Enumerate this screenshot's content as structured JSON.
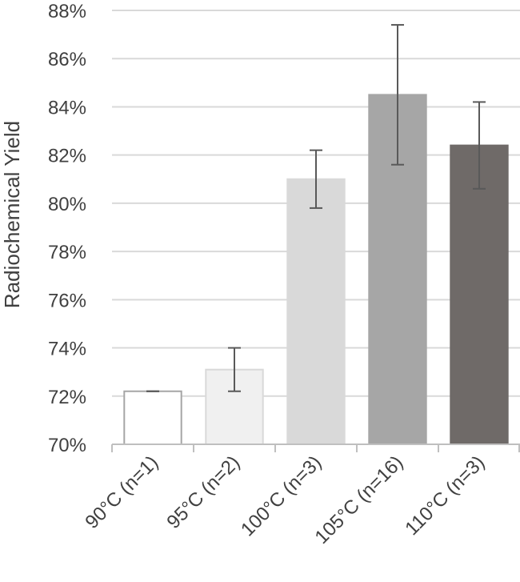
{
  "chart_data": {
    "type": "bar",
    "title": "",
    "xlabel": "",
    "ylabel": "Radiochemical Yield",
    "ylim": [
      0.7,
      0.88
    ],
    "yticks": [
      0.7,
      0.72,
      0.74,
      0.76,
      0.78,
      0.8,
      0.82,
      0.84,
      0.86,
      0.88
    ],
    "ytick_labels": [
      "70%",
      "72%",
      "74%",
      "76%",
      "78%",
      "80%",
      "82%",
      "84%",
      "86%",
      "88%"
    ],
    "grid": true,
    "legend": "none",
    "categories": [
      "90°C (n=1)",
      "95°C (n=2)",
      "100°C (n=3)",
      "105°C (n=16)",
      "110°C (n=3)"
    ],
    "values": [
      0.722,
      0.731,
      0.81,
      0.845,
      0.824
    ],
    "error_low": [
      0.722,
      0.722,
      0.798,
      0.816,
      0.806
    ],
    "error_high": [
      0.722,
      0.74,
      0.822,
      0.874,
      0.842
    ],
    "colors": {
      "bars": [
        "#ffffff",
        "#f0f0f0",
        "#d9d9d9",
        "#a6a6a6",
        "#6f6a68"
      ],
      "bar_edges": [
        "#a6a6a6",
        "#d9d9d9",
        "#d9d9d9",
        "#a6a6a6",
        "#6f6a68"
      ],
      "grid": "#d9d9d9",
      "axis": "#bfbfbf",
      "error_bar": "#595959",
      "text": "#404040"
    }
  }
}
